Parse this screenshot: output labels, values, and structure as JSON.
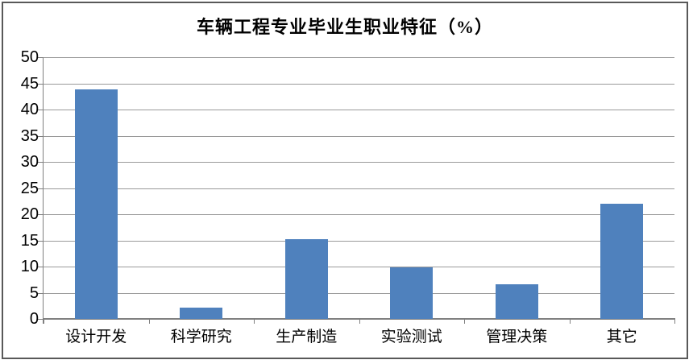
{
  "chart_data": {
    "type": "bar",
    "title": "车辆工程专业毕业生职业特征（%）",
    "categories": [
      "设计开发",
      "科学研究",
      "生产制造",
      "实验测试",
      "管理决策",
      "其它"
    ],
    "values": [
      43.8,
      2.2,
      15.3,
      9.8,
      6.6,
      22.0
    ],
    "xlabel": "",
    "ylabel": "",
    "ylim": [
      0,
      50
    ],
    "y_tick_step": 5,
    "y_tick_labels": [
      "0",
      "5",
      "10",
      "15",
      "20",
      "25",
      "30",
      "35",
      "40",
      "45",
      "50"
    ],
    "grid": true,
    "legend_position": "none",
    "colors": {
      "bar_fill": "#4F81BD",
      "gridline": "#9A9A9A",
      "axis": "#808080",
      "frame_border": "#595959",
      "background": "#FFFFFF",
      "text": "#000000"
    }
  }
}
